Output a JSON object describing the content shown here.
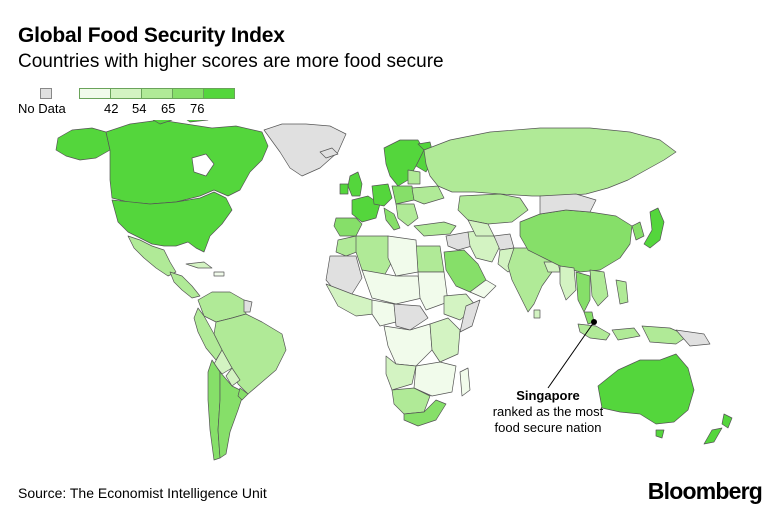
{
  "title": "Global Food Security Index",
  "subtitle": "Countries with higher scores are more food secure",
  "legend": {
    "nodata_label": "No Data",
    "nodata_color": "#e0e0e0",
    "ramp_colors": [
      "#f1fbeb",
      "#d3f3c2",
      "#b0ea97",
      "#86df69",
      "#54d63c"
    ],
    "ticks": [
      "42",
      "54",
      "65",
      "76"
    ]
  },
  "annotation": {
    "title": "Singapore",
    "text": "ranked as the most food secure nation"
  },
  "source": "Source: The Economist Intelligence Unit",
  "brand": "Bloomberg"
}
